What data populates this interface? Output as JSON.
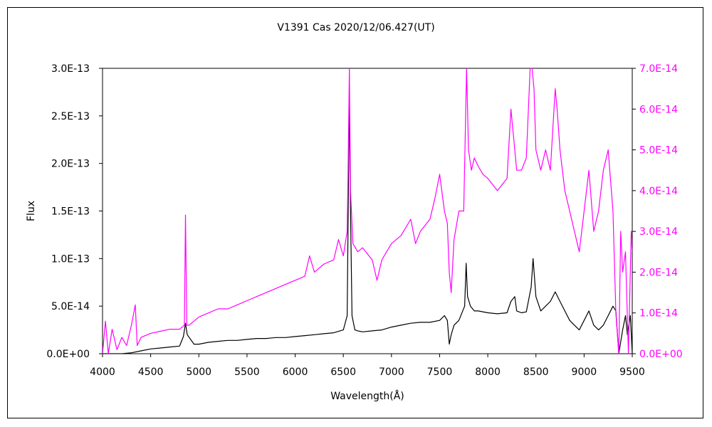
{
  "chart_data": {
    "type": "line",
    "title": "V1391 Cas   2020/12/06.427(UT)",
    "xlabel": "Wavelength(Å)",
    "ylabel": "Flux",
    "y2label": "",
    "xlim": [
      4000,
      9500
    ],
    "ylim": [
      0,
      3e-13
    ],
    "y2lim": [
      0,
      7e-14
    ],
    "x_ticks": [
      "4000",
      "4500",
      "5000",
      "5500",
      "6000",
      "6500",
      "7000",
      "7500",
      "8000",
      "8500",
      "9000",
      "9500"
    ],
    "y_ticks": [
      "0.0E+00",
      "5.0E-14",
      "1.0E-13",
      "1.5E-13",
      "2.0E-13",
      "2.5E-13",
      "3.0E-13"
    ],
    "y2_ticks": [
      "0.0E+00",
      "1.0E-14",
      "2.0E-14",
      "3.0E-14",
      "4.0E-14",
      "5.0E-14",
      "6.0E-14",
      "7.0E-14"
    ],
    "grid": false,
    "legend": "none",
    "colors": {
      "primary": "#000000",
      "secondary": "#ff00ff"
    },
    "series": [
      {
        "axis": "left",
        "color": "#000000",
        "x": [
          4000,
          4100,
          4200,
          4300,
          4400,
          4500,
          4600,
          4700,
          4800,
          4840,
          4861,
          4880,
          4950,
          5000,
          5100,
          5200,
          5300,
          5400,
          5500,
          5600,
          5700,
          5800,
          5900,
          6000,
          6100,
          6200,
          6300,
          6400,
          6500,
          6540,
          6563,
          6575,
          6590,
          6620,
          6650,
          6700,
          6800,
          6900,
          7000,
          7100,
          7200,
          7300,
          7400,
          7500,
          7550,
          7580,
          7600,
          7620,
          7650,
          7700,
          7760,
          7775,
          7790,
          7820,
          7860,
          7900,
          8000,
          8100,
          8200,
          8240,
          8280,
          8300,
          8350,
          8400,
          8450,
          8470,
          8500,
          8550,
          8600,
          8650,
          8700,
          8750,
          8800,
          8850,
          8900,
          8950,
          9000,
          9050,
          9100,
          9150,
          9200,
          9250,
          9300,
          9330,
          9360,
          9400,
          9430,
          9450,
          9480,
          9500
        ],
        "y": [
          0,
          0,
          0,
          1e-15,
          3e-15,
          5e-15,
          6e-15,
          7e-15,
          8e-15,
          1.8e-14,
          3.2e-14,
          2e-14,
          1e-14,
          1e-14,
          1.2e-14,
          1.3e-14,
          1.4e-14,
          1.4e-14,
          1.5e-14,
          1.6e-14,
          1.6e-14,
          1.7e-14,
          1.7e-14,
          1.8e-14,
          1.9e-14,
          2e-14,
          2.1e-14,
          2.2e-14,
          2.5e-14,
          4e-14,
          2.75e-13,
          1.5e-13,
          4e-14,
          2.5e-14,
          2.4e-14,
          2.3e-14,
          2.4e-14,
          2.5e-14,
          2.8e-14,
          3e-14,
          3.2e-14,
          3.3e-14,
          3.3e-14,
          3.5e-14,
          4e-14,
          3.5e-14,
          1e-14,
          2e-14,
          3e-14,
          3.5e-14,
          5e-14,
          9.5e-14,
          6e-14,
          5e-14,
          4.5e-14,
          4.5e-14,
          4.3e-14,
          4.2e-14,
          4.3e-14,
          5.5e-14,
          6e-14,
          4.5e-14,
          4.3e-14,
          4.4e-14,
          7e-14,
          1e-13,
          6e-14,
          4.5e-14,
          5e-14,
          5.5e-14,
          6.5e-14,
          5.5e-14,
          4.5e-14,
          3.5e-14,
          3e-14,
          2.5e-14,
          3.5e-14,
          4.5e-14,
          3e-14,
          2.5e-14,
          3e-14,
          4e-14,
          5e-14,
          4.5e-14,
          0,
          2.5e-14,
          4e-14,
          2e-14,
          4e-14,
          0
        ]
      },
      {
        "axis": "right",
        "color": "#ff00ff",
        "x": [
          4000,
          4030,
          4060,
          4100,
          4150,
          4200,
          4250,
          4300,
          4340,
          4360,
          4400,
          4500,
          4600,
          4700,
          4800,
          4850,
          4861,
          4875,
          4900,
          4950,
          5000,
          5100,
          5200,
          5300,
          5400,
          5500,
          5600,
          5700,
          5800,
          5900,
          6000,
          6100,
          6150,
          6200,
          6300,
          6400,
          6450,
          6500,
          6540,
          6550,
          6563,
          6575,
          6600,
          6650,
          6700,
          6800,
          6850,
          6900,
          7000,
          7100,
          7200,
          7250,
          7300,
          7400,
          7450,
          7500,
          7550,
          7580,
          7600,
          7620,
          7650,
          7700,
          7750,
          7780,
          7800,
          7830,
          7860,
          7900,
          7950,
          8000,
          8100,
          8200,
          8240,
          8280,
          8300,
          8350,
          8400,
          8440,
          8460,
          8480,
          8500,
          8550,
          8600,
          8650,
          8700,
          8720,
          8750,
          8800,
          8850,
          8900,
          8950,
          9000,
          9050,
          9100,
          9150,
          9200,
          9250,
          9300,
          9330,
          9360,
          9380,
          9400,
          9430,
          9460,
          9490,
          9500
        ],
        "y": [
          0,
          8e-15,
          0,
          6e-15,
          1e-15,
          4e-15,
          2e-15,
          7e-15,
          1.2e-14,
          2e-15,
          4e-15,
          5e-15,
          5.5e-15,
          6e-15,
          6e-15,
          7e-15,
          3.4e-14,
          7e-15,
          7e-15,
          8e-15,
          9e-15,
          1e-14,
          1.1e-14,
          1.1e-14,
          1.2e-14,
          1.3e-14,
          1.4e-14,
          1.5e-14,
          1.6e-14,
          1.7e-14,
          1.8e-14,
          1.9e-14,
          2.4e-14,
          2e-14,
          2.2e-14,
          2.3e-14,
          2.8e-14,
          2.4e-14,
          3e-14,
          4.5e-14,
          7e-14,
          4e-14,
          2.7e-14,
          2.5e-14,
          2.6e-14,
          2.3e-14,
          1.8e-14,
          2.3e-14,
          2.7e-14,
          2.9e-14,
          3.3e-14,
          2.7e-14,
          3e-14,
          3.3e-14,
          3.8e-14,
          4.4e-14,
          3.5e-14,
          3.2e-14,
          2e-14,
          1.5e-14,
          2.8e-14,
          3.5e-14,
          3.5e-14,
          7e-14,
          5e-14,
          4.5e-14,
          4.8e-14,
          4.6e-14,
          4.4e-14,
          4.3e-14,
          4e-14,
          4.3e-14,
          6e-14,
          5e-14,
          4.5e-14,
          4.5e-14,
          4.8e-14,
          7e-14,
          7e-14,
          6.5e-14,
          5e-14,
          4.5e-14,
          5e-14,
          4.5e-14,
          6.5e-14,
          6e-14,
          5e-14,
          4e-14,
          3.5e-14,
          3e-14,
          2.5e-14,
          3.5e-14,
          4.5e-14,
          3e-14,
          3.5e-14,
          4.5e-14,
          5e-14,
          3.5e-14,
          1e-14,
          0,
          3e-14,
          2e-14,
          2.5e-14,
          0,
          3e-14,
          2.5e-14
        ]
      }
    ]
  }
}
